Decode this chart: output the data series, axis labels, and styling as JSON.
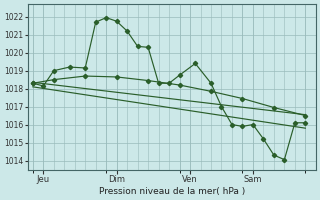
{
  "bg": "#cce8e8",
  "grid_color": "#99bbbb",
  "lc": "#2a5e2a",
  "title": "Pression niveau de la mer( hPa )",
  "ylim": [
    1013.5,
    1022.7
  ],
  "xlim": [
    -2,
    108
  ],
  "yticks": [
    1014,
    1015,
    1016,
    1017,
    1018,
    1019,
    1020,
    1021,
    1022
  ],
  "xtick_pos": [
    4,
    32,
    60,
    84
  ],
  "xtick_labels": [
    "Jeu",
    "Dim",
    "Ven",
    "Sam"
  ],
  "vline_pos": [
    0,
    28,
    56,
    80,
    104
  ],
  "main_x": [
    0,
    4,
    8,
    14,
    20,
    24,
    28,
    32,
    36,
    40,
    44,
    48,
    52,
    56,
    62,
    68,
    72,
    76,
    80,
    84,
    88,
    92,
    96,
    100,
    104
  ],
  "main_y": [
    1018.3,
    1018.15,
    1019.0,
    1019.2,
    1019.15,
    1021.7,
    1021.95,
    1021.75,
    1021.2,
    1020.35,
    1020.3,
    1018.3,
    1018.3,
    1018.75,
    1019.4,
    1018.3,
    1017.0,
    1016.0,
    1015.9,
    1016.0,
    1015.2,
    1014.3,
    1014.05,
    1016.1,
    1016.1
  ],
  "smooth_x": [
    0,
    8,
    20,
    32,
    44,
    56,
    68,
    80,
    92,
    104
  ],
  "smooth_y": [
    1018.3,
    1018.5,
    1018.7,
    1018.65,
    1018.45,
    1018.2,
    1017.85,
    1017.45,
    1016.95,
    1016.5
  ],
  "trend1_x": [
    0,
    104
  ],
  "trend1_y": [
    1018.35,
    1016.55
  ],
  "trend2_x": [
    0,
    104
  ],
  "trend2_y": [
    1018.1,
    1015.8
  ]
}
